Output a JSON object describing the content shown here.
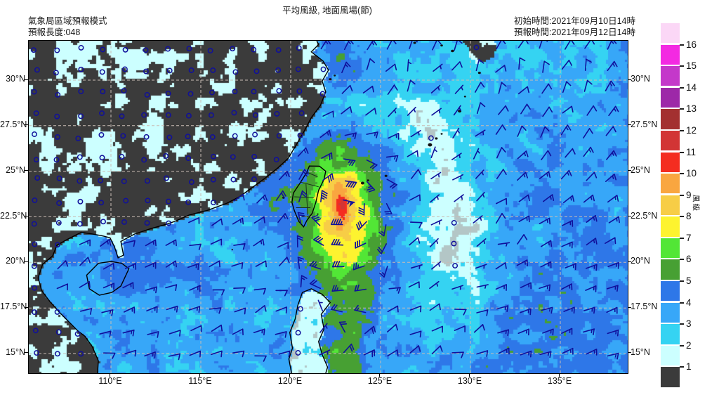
{
  "header": {
    "model_name": "氣象局區域預報模式",
    "forecast_length": "預報長度:048",
    "title": "平均風級, 地面風場(節)",
    "init_time": "初始時間:2021年09月10日14時",
    "valid_time": "預報時間:2021年09月12日14時"
  },
  "axes": {
    "lat_labels": [
      {
        "text": "30°N",
        "lat": 30
      },
      {
        "text": "27.5°N",
        "lat": 27.5
      },
      {
        "text": "25°N",
        "lat": 25
      },
      {
        "text": "22.5°N",
        "lat": 22.5
      },
      {
        "text": "20°N",
        "lat": 20
      },
      {
        "text": "17.5°N",
        "lat": 17.5
      },
      {
        "text": "15°N",
        "lat": 15
      }
    ],
    "lon_labels": [
      {
        "text": "110°E",
        "lon": 110
      },
      {
        "text": "115°E",
        "lon": 115
      },
      {
        "text": "120°E",
        "lon": 120
      },
      {
        "text": "125°E",
        "lon": 125
      },
      {
        "text": "130°E",
        "lon": 130
      },
      {
        "text": "135°E",
        "lon": 135
      }
    ]
  },
  "colorbar": {
    "label": "風級",
    "tick_values": [
      16,
      15,
      14,
      13,
      12,
      11,
      10,
      9,
      8,
      7,
      6,
      5,
      4,
      3,
      2,
      1
    ],
    "blocks_top_to_bottom": [
      {
        "range": ">16",
        "color": "#fbd7f6"
      },
      {
        "range": "15-16",
        "color": "#f32ae2"
      },
      {
        "range": "14-15",
        "color": "#c438ca"
      },
      {
        "range": "13-14",
        "color": "#9d28a8"
      },
      {
        "range": "12-13",
        "color": "#a33030"
      },
      {
        "range": "11-12",
        "color": "#d23535"
      },
      {
        "range": "10-11",
        "color": "#f42d20"
      },
      {
        "range": "9-10",
        "color": "#f9a640"
      },
      {
        "range": "8-9",
        "color": "#f7cd46"
      },
      {
        "range": "7-8",
        "color": "#fdf32f"
      },
      {
        "range": "6-7",
        "color": "#52e636"
      },
      {
        "range": "5-6",
        "color": "#47a033"
      },
      {
        "range": "4-5",
        "color": "#2e77e8"
      },
      {
        "range": "3-4",
        "color": "#37a7f8"
      },
      {
        "range": "2-3",
        "color": "#35d3f2"
      },
      {
        "range": "1-2",
        "color": "#ccffff"
      },
      {
        "range": "<1",
        "color": "#3b3b3b"
      }
    ],
    "calm_ocean_color": "#b3c6c6",
    "calm_land_color": "#3b3b3b"
  },
  "map": {
    "lon_range": [
      105.43,
      138.75
    ],
    "lat_range": [
      13.92,
      32.16
    ],
    "graticule": {
      "lats": [
        15,
        17.5,
        20,
        22.5,
        25,
        27.5,
        30
      ],
      "lons": [
        110,
        115,
        120,
        125,
        130,
        135
      ],
      "color": "#c9bcb4"
    },
    "barb_color": "#10109b",
    "coast_color": "#000000",
    "typhoon": {
      "center_lon": 122.9,
      "center_lat": 23.3,
      "peak_class": 11.3
    },
    "coastlines": {
      "china_vietnam": [
        [
          109.25,
          13.92
        ],
        [
          109.3,
          14.6
        ],
        [
          108.95,
          15.4
        ],
        [
          108.55,
          15.95
        ],
        [
          108.15,
          16.25
        ],
        [
          107.75,
          16.65
        ],
        [
          107.15,
          17.25
        ],
        [
          106.6,
          17.85
        ],
        [
          106.15,
          18.45
        ],
        [
          105.95,
          19.15
        ],
        [
          106.2,
          19.9
        ],
        [
          106.75,
          20.35
        ],
        [
          107.0,
          20.95
        ],
        [
          107.55,
          21.25
        ],
        [
          108.35,
          21.65
        ],
        [
          109.0,
          21.55
        ],
        [
          109.55,
          21.45
        ],
        [
          109.95,
          21.35
        ],
        [
          110.2,
          20.85
        ],
        [
          110.4,
          20.25
        ],
        [
          110.7,
          20.4
        ],
        [
          110.55,
          21.15
        ],
        [
          111.3,
          21.55
        ],
        [
          112.2,
          21.85
        ],
        [
          113.1,
          22.1
        ],
        [
          113.55,
          22.25
        ],
        [
          114.35,
          22.6
        ],
        [
          115.35,
          22.85
        ],
        [
          116.45,
          23.25
        ],
        [
          117.15,
          23.6
        ],
        [
          117.85,
          24.1
        ],
        [
          118.55,
          24.6
        ],
        [
          119.3,
          25.2
        ],
        [
          119.85,
          25.7
        ],
        [
          120.25,
          26.35
        ],
        [
          120.75,
          27.2
        ],
        [
          121.15,
          27.95
        ],
        [
          121.65,
          28.6
        ],
        [
          121.95,
          29.35
        ],
        [
          121.75,
          29.95
        ],
        [
          122.1,
          30.55
        ],
        [
          121.8,
          31.05
        ],
        [
          121.15,
          31.55
        ],
        [
          121.55,
          31.95
        ],
        [
          121.45,
          32.16
        ]
      ],
      "taiwan": [
        [
          121.04,
          25.29
        ],
        [
          121.6,
          25.28
        ],
        [
          121.95,
          25.0
        ],
        [
          121.85,
          24.55
        ],
        [
          121.55,
          23.95
        ],
        [
          121.4,
          23.3
        ],
        [
          121.2,
          22.7
        ],
        [
          120.9,
          22.3
        ],
        [
          120.72,
          21.95
        ],
        [
          120.45,
          22.25
        ],
        [
          120.2,
          22.85
        ],
        [
          120.07,
          23.3
        ],
        [
          120.15,
          23.8
        ],
        [
          120.55,
          24.4
        ],
        [
          120.9,
          24.95
        ],
        [
          121.04,
          25.29
        ]
      ],
      "taiwan_borders": [
        [
          [
            120.9,
            24.95
          ],
          [
            121.5,
            24.7
          ]
        ],
        [
          [
            120.55,
            24.4
          ],
          [
            121.55,
            24.15
          ]
        ],
        [
          [
            120.2,
            23.6
          ],
          [
            121.3,
            23.55
          ]
        ],
        [
          [
            120.3,
            23.0
          ],
          [
            121.1,
            23.0
          ]
        ],
        [
          [
            120.6,
            22.5
          ],
          [
            121.05,
            22.55
          ]
        ],
        [
          [
            120.85,
            24.3
          ],
          [
            120.95,
            22.6
          ]
        ]
      ],
      "hainan": [
        [
          108.65,
          19.3
        ],
        [
          109.3,
          19.95
        ],
        [
          110.0,
          20.05
        ],
        [
          110.6,
          19.95
        ],
        [
          111.0,
          19.65
        ],
        [
          110.55,
          18.7
        ],
        [
          110.05,
          18.35
        ],
        [
          109.35,
          18.2
        ],
        [
          108.8,
          18.55
        ],
        [
          108.65,
          19.3
        ]
      ],
      "luzon": [
        [
          120.05,
          13.92
        ],
        [
          119.9,
          14.7
        ],
        [
          120.1,
          15.3
        ],
        [
          119.95,
          16.15
        ],
        [
          120.25,
          16.9
        ],
        [
          120.4,
          17.65
        ],
        [
          120.65,
          18.35
        ],
        [
          121.15,
          18.55
        ],
        [
          121.75,
          18.25
        ],
        [
          122.2,
          17.8
        ],
        [
          121.7,
          17.15
        ],
        [
          121.85,
          16.35
        ],
        [
          121.55,
          15.65
        ],
        [
          121.75,
          14.95
        ],
        [
          122.05,
          14.25
        ],
        [
          121.95,
          13.92
        ]
      ],
      "kyushu": [
        [
          129.55,
          32.16
        ],
        [
          130.1,
          31.45
        ],
        [
          130.65,
          31.0
        ],
        [
          131.25,
          31.35
        ],
        [
          131.45,
          31.95
        ],
        [
          131.3,
          32.16
        ]
      ],
      "island_dots": [
        [
          124.0,
          24.35,
          2.5
        ],
        [
          124.3,
          24.5,
          1.8
        ],
        [
          125.3,
          24.75,
          2
        ],
        [
          127.75,
          26.45,
          3
        ],
        [
          128.1,
          26.8,
          2
        ],
        [
          128.4,
          27.05,
          1.5
        ],
        [
          129.4,
          28.3,
          2.5
        ],
        [
          129.7,
          29.1,
          1.5
        ],
        [
          130.5,
          30.4,
          2
        ],
        [
          122.2,
          30.05,
          2
        ],
        [
          122.45,
          30.25,
          1.5
        ],
        [
          119.6,
          23.55,
          1.8
        ],
        [
          121.5,
          22.65,
          1.3
        ],
        [
          116.75,
          20.7,
          1.2
        ],
        [
          129.0,
          31.6,
          2.2
        ],
        [
          128.4,
          31.9,
          1.8
        ],
        [
          126.9,
          32.05,
          2
        ]
      ]
    }
  }
}
